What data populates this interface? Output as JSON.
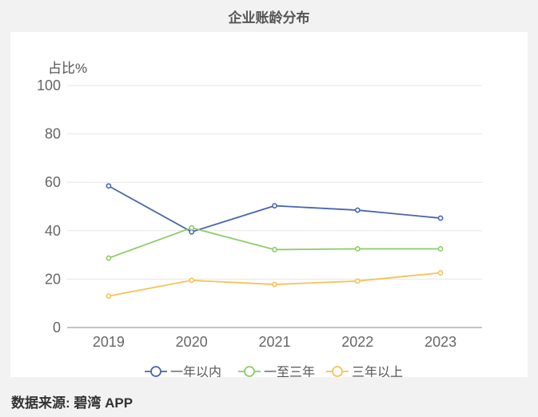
{
  "title": "企业账龄分布",
  "footer": "数据来源: 碧湾 APP",
  "chart_data": {
    "type": "line",
    "title": "企业账龄分布",
    "ylabel": "占比%",
    "xlabel": "",
    "categories": [
      "2019",
      "2020",
      "2021",
      "2022",
      "2023"
    ],
    "ylim": [
      0,
      100
    ],
    "yticks": [
      0,
      20,
      40,
      60,
      80,
      100
    ],
    "grid": true,
    "legend_position": "bottom",
    "series": [
      {
        "name": "一年以内",
        "color": "#4a66ad",
        "values": [
          58.5,
          39.5,
          50.3,
          48.5,
          45.2
        ]
      },
      {
        "name": "一至三年",
        "color": "#8ccc68",
        "values": [
          28.7,
          41.2,
          32.2,
          32.5,
          32.5
        ]
      },
      {
        "name": "三年以上",
        "color": "#f5c356",
        "values": [
          13.0,
          19.5,
          17.8,
          19.2,
          22.6
        ]
      }
    ]
  }
}
